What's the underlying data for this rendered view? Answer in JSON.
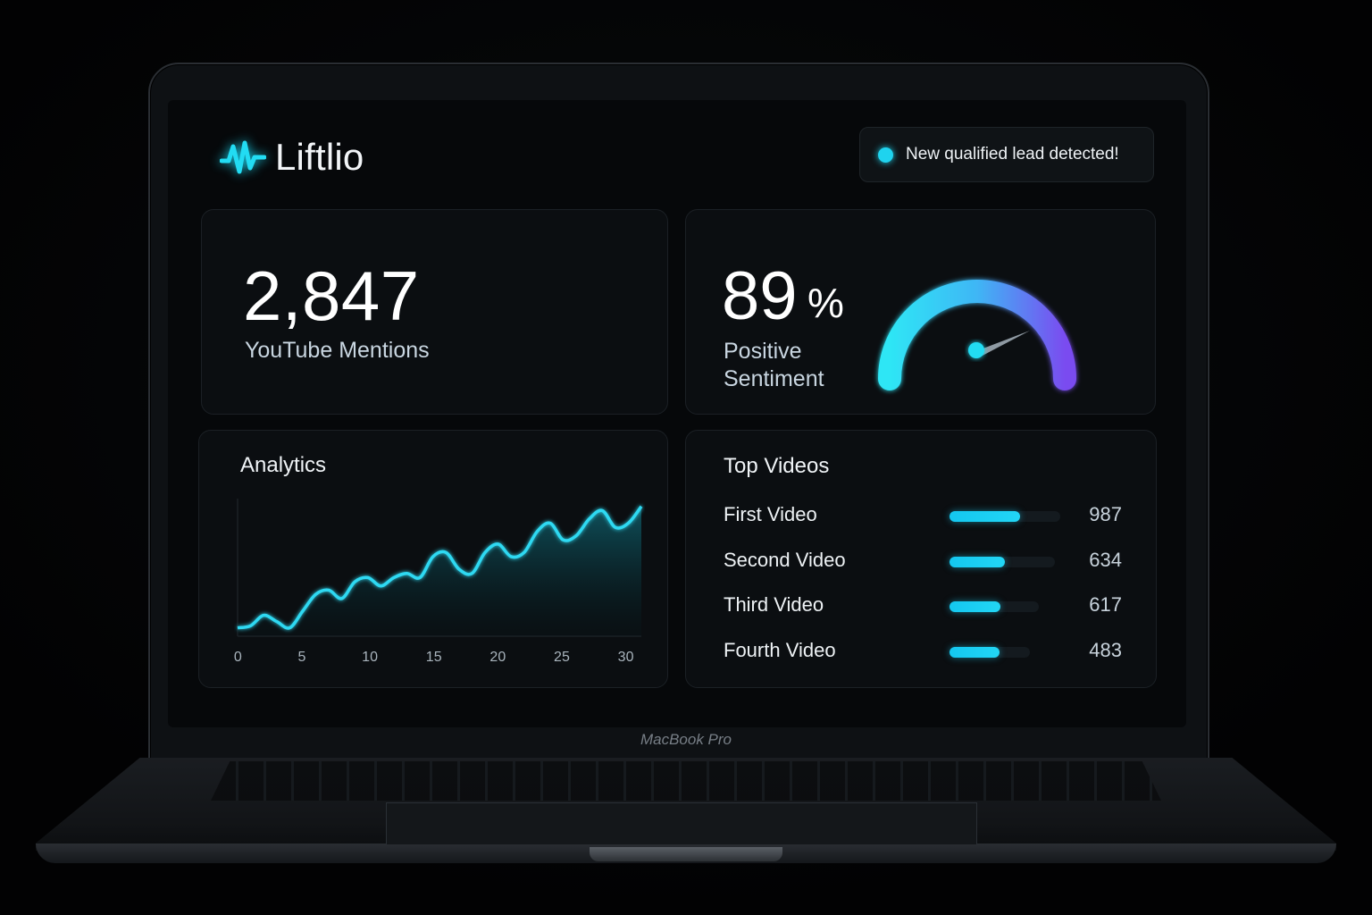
{
  "header": {
    "app_name": "Liftlio",
    "logo_icon": "waveform-icon",
    "notification": "New qualified lead detected!"
  },
  "device_label": "MacBook Pro",
  "mentions": {
    "value": "2,847",
    "label": "YouTube Mentions"
  },
  "sentiment": {
    "value": "89",
    "unit": "%",
    "label": "Positive Sentiment",
    "gauge_fraction": 0.89
  },
  "analytics": {
    "title": "Analytics",
    "x_ticks": [
      "0",
      "5",
      "10",
      "15",
      "20",
      "25",
      "30"
    ]
  },
  "chart_data": {
    "type": "area",
    "title": "Analytics",
    "x": [
      0,
      1,
      2,
      3,
      4,
      5,
      6,
      7,
      8,
      9,
      10,
      11,
      12,
      13,
      14,
      15,
      16,
      17,
      18,
      19,
      20,
      21,
      22,
      23,
      24,
      25,
      26,
      27,
      28,
      29,
      30,
      31
    ],
    "values": [
      2,
      2.5,
      5,
      3.5,
      2,
      6,
      10,
      11,
      9,
      13,
      14,
      12,
      14,
      15,
      14,
      19,
      20,
      16,
      15,
      20,
      22,
      19,
      20,
      25,
      27,
      23,
      24,
      28,
      30,
      26,
      27,
      31
    ],
    "ylim": [
      0,
      35
    ],
    "xlim": [
      0,
      31
    ],
    "grid": false,
    "colors": {
      "line": "#2fd9f2",
      "fill": "#0f5a66"
    }
  },
  "top_videos": {
    "title": "Top Videos",
    "items": [
      {
        "name": "First Video",
        "value": "987",
        "fraction": 0.64
      },
      {
        "name": "Second Video",
        "value": "634",
        "fraction": 0.5
      },
      {
        "name": "Third Video",
        "value": "617",
        "fraction": 0.46
      },
      {
        "name": "Fourth Video",
        "value": "483",
        "fraction": 0.45
      }
    ]
  },
  "colors": {
    "accent": "#1fd3ee",
    "gauge_start": "#2ee6f5",
    "gauge_end": "#7a4cf0"
  }
}
